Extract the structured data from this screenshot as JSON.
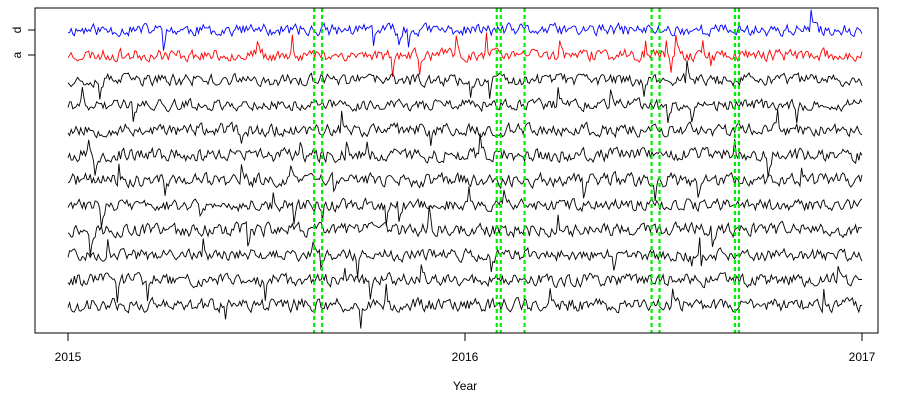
{
  "chart_data": {
    "type": "line",
    "title": "",
    "xlabel": "Year",
    "ylabel": "",
    "xlim": [
      2015.0,
      2017.0
    ],
    "x_ticks": [
      "2015",
      "2016",
      "2017"
    ],
    "y_ticks": [
      "d",
      "a"
    ],
    "grid": false,
    "legend": "none",
    "start_year": 2015.0,
    "end_year": 2017.0,
    "n_points": 500,
    "series": [
      {
        "label_tick": "d",
        "color": "#0000ff",
        "amplitude": 0.45,
        "seed": 11
      },
      {
        "label_tick": "a",
        "color": "#ff0000",
        "amplitude": 0.45,
        "seed": 23
      },
      {
        "color": "#000000",
        "amplitude": 0.45,
        "seed": 37
      },
      {
        "color": "#000000",
        "amplitude": 0.42,
        "seed": 41
      },
      {
        "color": "#000000",
        "amplitude": 0.48,
        "seed": 53
      },
      {
        "color": "#000000",
        "amplitude": 0.5,
        "seed": 67
      },
      {
        "color": "#000000",
        "amplitude": 0.5,
        "seed": 71
      },
      {
        "color": "#000000",
        "amplitude": 0.45,
        "seed": 83
      },
      {
        "color": "#000000",
        "amplitude": 0.5,
        "seed": 97
      },
      {
        "color": "#000000",
        "amplitude": 0.45,
        "seed": 101
      },
      {
        "color": "#000000",
        "amplitude": 0.48,
        "seed": 113
      },
      {
        "color": "#000000",
        "amplitude": 0.5,
        "seed": 127
      }
    ],
    "vlines": {
      "color": "#00ee00",
      "x": [
        2015.62,
        2015.64,
        2016.08,
        2016.09,
        2016.15,
        2016.47,
        2016.49,
        2016.68,
        2016.69
      ]
    }
  }
}
